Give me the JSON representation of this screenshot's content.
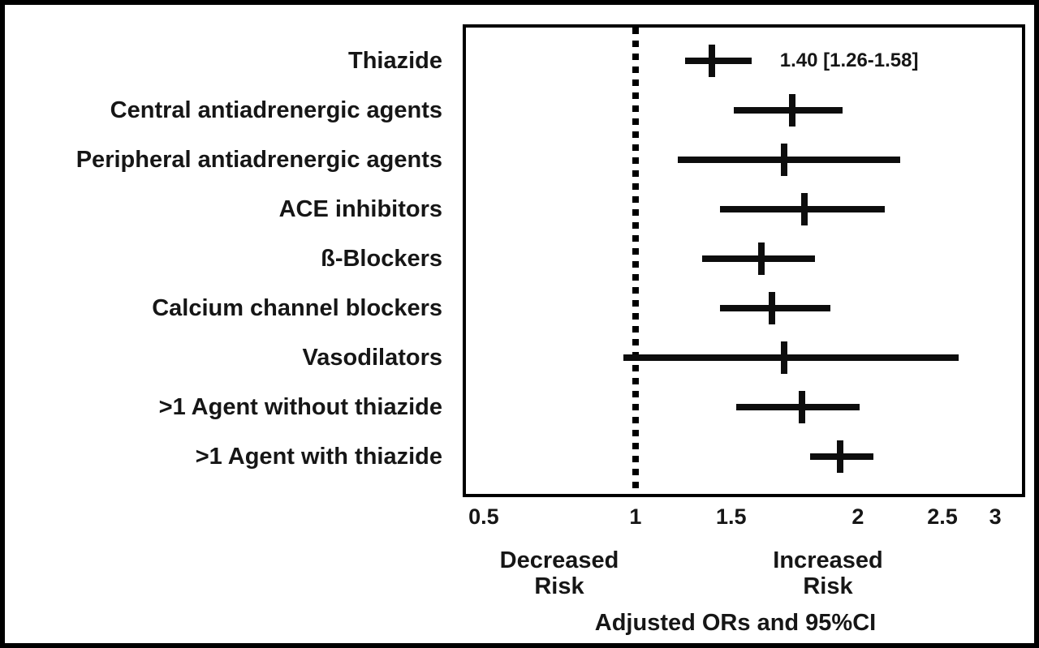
{
  "figure": {
    "background": "#ffffff",
    "border_color": "#000000",
    "text_color": "#161616"
  },
  "chart_data": {
    "type": "scatter",
    "variant": "forest-plot",
    "title": "",
    "xlabel": "Adjusted ORs and 95%CI",
    "x_axis": {
      "range": [
        0.45,
        3.1
      ],
      "grid": false,
      "ticks": [
        {
          "value": 0.5,
          "label": "0.5",
          "percent": 3.2
        },
        {
          "value": 1,
          "label": "1",
          "percent": 30.5
        },
        {
          "value": 1.5,
          "label": "1.5",
          "percent": 47.7
        },
        {
          "value": 2,
          "label": "2",
          "percent": 70.5
        },
        {
          "value": 2.5,
          "label": "2.5",
          "percent": 85.7
        },
        {
          "value": 3,
          "label": "3",
          "percent": 95.2
        }
      ]
    },
    "reference_line": {
      "value": 1,
      "style": "dotted"
    },
    "risk_labels": {
      "decreased": [
        "Decreased",
        "Risk"
      ],
      "increased": [
        "Increased",
        "Risk"
      ]
    },
    "rows": [
      {
        "label": "Thiazide",
        "or": 1.4,
        "ci_low": 1.26,
        "ci_high": 1.58,
        "annotation": "1.40 [1.26-1.58]"
      },
      {
        "label": "Central antiadrenergic agents",
        "or": 1.74,
        "ci_low": 1.51,
        "ci_high": 1.94
      },
      {
        "label": "Peripheral antiadrenergic agents",
        "or": 1.71,
        "ci_low": 1.22,
        "ci_high": 2.25
      },
      {
        "label": "ACE inhibitors",
        "or": 1.79,
        "ci_low": 1.44,
        "ci_high": 2.16
      },
      {
        "label": "ß-Blockers",
        "or": 1.62,
        "ci_low": 1.35,
        "ci_high": 1.83
      },
      {
        "label": "Calcium channel blockers",
        "or": 1.66,
        "ci_low": 1.44,
        "ci_high": 1.89
      },
      {
        "label": "Vasodilators",
        "or": 1.71,
        "ci_low": 0.96,
        "ci_high": 2.65
      },
      {
        "label": ">1 Agent without thiazide",
        "or": 1.78,
        "ci_low": 1.52,
        "ci_high": 2.01
      },
      {
        "label": ">1 Agent with thiazide",
        "or": 1.93,
        "ci_low": 1.81,
        "ci_high": 2.09
      }
    ]
  }
}
